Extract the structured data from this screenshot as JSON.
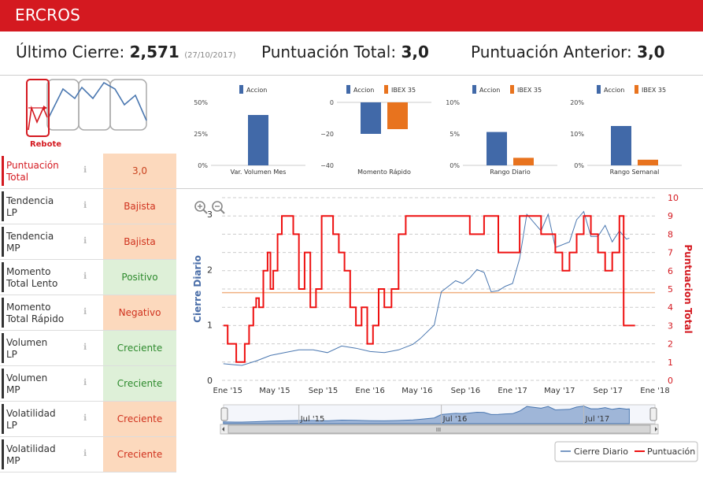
{
  "header": {
    "title": "ERCROS"
  },
  "summary": {
    "last_close_label": "Último Cierre:",
    "last_close_value": "2,571",
    "last_close_date": "(27/10/2017)",
    "total_score_label": "Puntuación Total:",
    "total_score_value": "3,0",
    "prev_score_label": "Puntuación Anterior:",
    "prev_score_value": "3,0"
  },
  "pattern": {
    "label": "Rebote"
  },
  "indicators": [
    {
      "label1": "Puntuación",
      "label2": "Total",
      "value": "3,0",
      "tone": "orange",
      "highlight": true
    },
    {
      "label1": "Tendencia",
      "label2": "LP",
      "value": "Bajista",
      "tone": "orange",
      "highlight": false
    },
    {
      "label1": "Tendencia",
      "label2": "MP",
      "value": "Bajista",
      "tone": "orange",
      "highlight": false
    },
    {
      "label1": "Momento",
      "label2": "Total Lento",
      "value": "Positivo",
      "tone": "green",
      "highlight": false
    },
    {
      "label1": "Momento",
      "label2": "Total Rápido",
      "value": "Negativo",
      "tone": "orange",
      "highlight": false
    },
    {
      "label1": "Volumen",
      "label2": "LP",
      "value": "Creciente",
      "tone": "green",
      "highlight": false
    },
    {
      "label1": "Volumen",
      "label2": "MP",
      "value": "Creciente",
      "tone": "green",
      "highlight": false
    },
    {
      "label1": "Volatilidad",
      "label2": "LP",
      "value": "Creciente",
      "tone": "orange",
      "highlight": false
    },
    {
      "label1": "Volatilidad",
      "label2": "MP",
      "value": "Creciente",
      "tone": "orange",
      "highlight": false
    }
  ],
  "colors": {
    "brand": "#d41920",
    "accion": "#4169a8",
    "ibex": "#e8731e",
    "score": "#ee1111",
    "close": "#4a77b0",
    "ref_line": "#f0b080"
  },
  "chart_data": [
    {
      "type": "bar",
      "title": "Var. Volumen Mes",
      "legend": [
        "Accion"
      ],
      "categories": [
        "Accion"
      ],
      "values": [
        40
      ],
      "yticks": [
        "50%",
        "25%",
        "0%"
      ],
      "ylim": [
        0,
        50
      ]
    },
    {
      "type": "bar",
      "title": "Momento Rápido",
      "legend": [
        "Accion",
        "IBEX 35"
      ],
      "categories": [
        "Accion",
        "IBEX 35"
      ],
      "values": [
        -20,
        -17
      ],
      "yticks": [
        "0",
        "−20",
        "−40"
      ],
      "ylim": [
        -40,
        0
      ]
    },
    {
      "type": "bar",
      "title": "Rango Diario",
      "legend": [
        "Accion",
        "IBEX 35"
      ],
      "categories": [
        "Accion",
        "IBEX 35"
      ],
      "values": [
        5.3,
        1.2
      ],
      "yticks": [
        "10%",
        "5%",
        "0%"
      ],
      "ylim": [
        0,
        10
      ]
    },
    {
      "type": "bar",
      "title": "Rango Semanal",
      "legend": [
        "Accion",
        "IBEX 35"
      ],
      "categories": [
        "Accion",
        "IBEX 35"
      ],
      "values": [
        12.5,
        1.8
      ],
      "yticks": [
        "20%",
        "10%",
        "0%"
      ],
      "ylim": [
        0,
        20
      ]
    },
    {
      "type": "line",
      "ylabel_left": "Cierre Diario",
      "ylabel_right": "Puntuacion Total",
      "left_ticks": [
        "0",
        "1",
        "2",
        "3"
      ],
      "right_ticks": [
        "0",
        "1",
        "2",
        "3",
        "4",
        "5",
        "6",
        "7",
        "8",
        "9",
        "10"
      ],
      "ylim_left": [
        0,
        3.3
      ],
      "ylim_right": [
        0,
        10
      ],
      "x_ticks": [
        "Ene '15",
        "May '15",
        "Sep '15",
        "Ene '16",
        "May '16",
        "Sep '16",
        "Ene '17",
        "May '17",
        "Sep '17",
        "Ene '18"
      ],
      "xlim": [
        2014.96,
        2018.0
      ],
      "reference_score": 4.8,
      "navigator_ticks": [
        "Jul '15",
        "Jul '16",
        "Jul '17"
      ],
      "navigator_scroll_label": "III",
      "legend": [
        "Cierre Diario",
        "Puntuación"
      ],
      "series": [
        {
          "name": "Cierre Diario",
          "x": [
            2014.97,
            2015.05,
            2015.1,
            2015.2,
            2015.3,
            2015.4,
            2015.5,
            2015.6,
            2015.7,
            2015.8,
            2015.9,
            2016.0,
            2016.1,
            2016.2,
            2016.3,
            2016.35,
            2016.45,
            2016.5,
            2016.55,
            2016.6,
            2016.65,
            2016.7,
            2016.75,
            2016.8,
            2016.85,
            2016.9,
            2016.95,
            2017.0,
            2017.05,
            2017.1,
            2017.2,
            2017.25,
            2017.3,
            2017.4,
            2017.45,
            2017.5,
            2017.55,
            2017.6,
            2017.65,
            2017.7,
            2017.75,
            2017.8,
            2017.82
          ],
          "values": [
            0.3,
            0.28,
            0.27,
            0.35,
            0.45,
            0.5,
            0.55,
            0.55,
            0.5,
            0.62,
            0.58,
            0.52,
            0.5,
            0.55,
            0.65,
            0.75,
            1.0,
            1.6,
            1.7,
            1.8,
            1.75,
            1.85,
            2.0,
            1.95,
            1.6,
            1.62,
            1.7,
            1.75,
            2.2,
            3.0,
            2.7,
            3.0,
            2.4,
            2.5,
            2.9,
            3.05,
            2.6,
            2.6,
            2.8,
            2.5,
            2.7,
            2.55,
            2.57
          ]
        },
        {
          "name": "Puntuación",
          "x": [
            2014.97,
            2015.0,
            2015.03,
            2015.06,
            2015.09,
            2015.12,
            2015.15,
            2015.18,
            2015.2,
            2015.22,
            2015.25,
            2015.28,
            2015.3,
            2015.32,
            2015.35,
            2015.38,
            2015.42,
            2015.46,
            2015.5,
            2015.54,
            2015.58,
            2015.62,
            2015.66,
            2015.7,
            2015.74,
            2015.78,
            2015.82,
            2015.86,
            2015.9,
            2015.94,
            2015.98,
            2016.02,
            2016.06,
            2016.1,
            2016.15,
            2016.2,
            2016.25,
            2016.3,
            2016.35,
            2016.45,
            2016.55,
            2016.6,
            2016.7,
            2016.8,
            2016.9,
            2017.0,
            2017.05,
            2017.1,
            2017.2,
            2017.3,
            2017.35,
            2017.4,
            2017.45,
            2017.5,
            2017.55,
            2017.6,
            2017.65,
            2017.7,
            2017.75,
            2017.78,
            2017.8,
            2017.83
          ],
          "values": [
            3.0,
            2.0,
            2.0,
            1.0,
            1.0,
            2.0,
            3.0,
            4.0,
            4.5,
            4.0,
            6.0,
            7.0,
            5.0,
            6.0,
            8.0,
            9.0,
            9.0,
            8.0,
            5.0,
            7.0,
            4.0,
            5.0,
            9.0,
            9.0,
            8.0,
            7.0,
            6.0,
            4.0,
            3.0,
            4.0,
            2.0,
            3.0,
            5.0,
            4.0,
            5.0,
            8.0,
            9.0,
            9.0,
            9.0,
            9.0,
            9.0,
            9.0,
            8.0,
            9.0,
            7.0,
            7.0,
            9.0,
            9.0,
            8.0,
            7.0,
            6.0,
            7.0,
            8.0,
            9.0,
            8.0,
            7.0,
            6.0,
            7.0,
            9.0,
            3.0,
            3.0,
            3.0
          ]
        }
      ]
    }
  ]
}
